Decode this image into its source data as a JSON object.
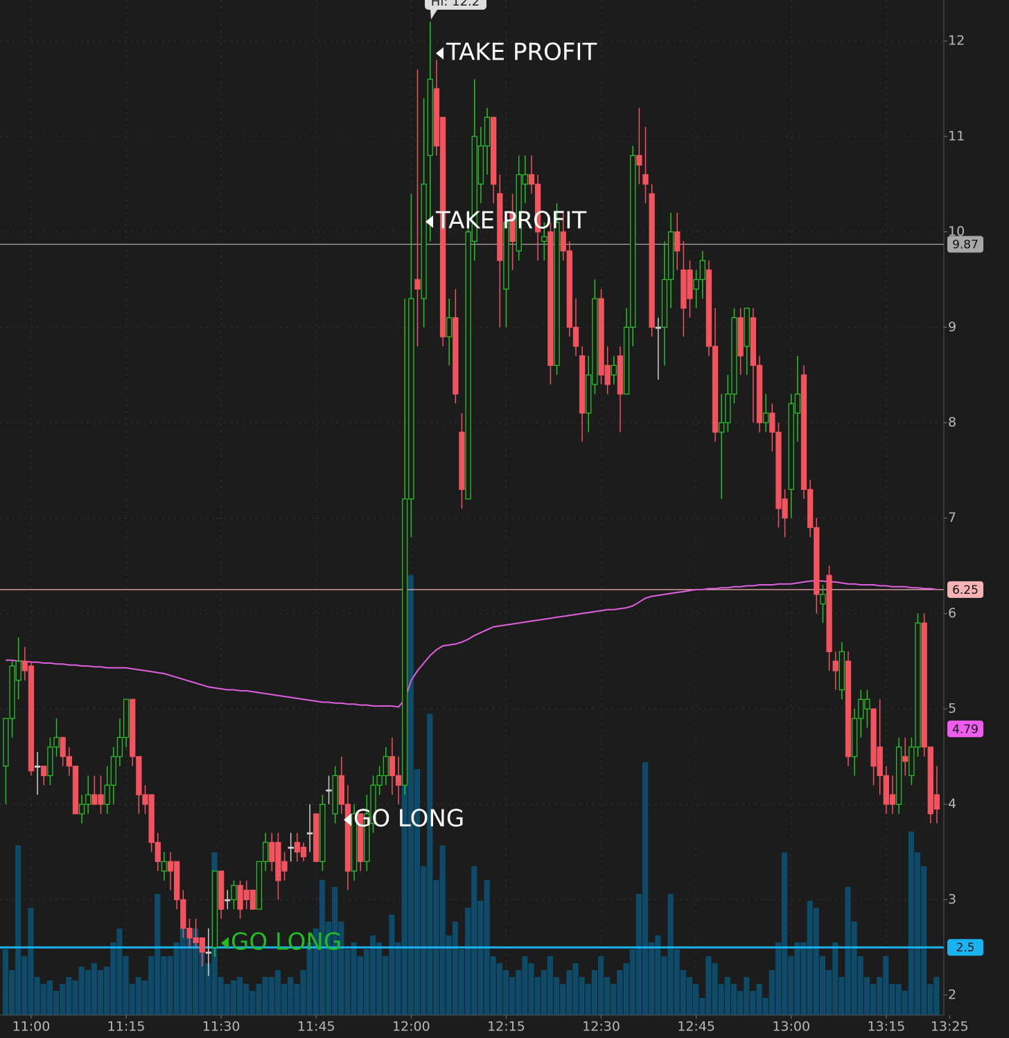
{
  "chart_data": {
    "type": "candlestick",
    "x": [
      656,
      657,
      658,
      659,
      660,
      661,
      662,
      663,
      664,
      665,
      666,
      667,
      668,
      669,
      670,
      671,
      672,
      673,
      674,
      675,
      676,
      677,
      678,
      679,
      680,
      681,
      682,
      683,
      684,
      685,
      686,
      687,
      688,
      689,
      690,
      691,
      692,
      693,
      694,
      695,
      696,
      697,
      698,
      699,
      700,
      701,
      702,
      703,
      704,
      705,
      706,
      707,
      708,
      709,
      710,
      711,
      712,
      713,
      714,
      715,
      716,
      717,
      718,
      719,
      720,
      721,
      722,
      723,
      724,
      725,
      726,
      727,
      728,
      729,
      730,
      731,
      732,
      733,
      734,
      735,
      736,
      737,
      738,
      739,
      740,
      741,
      742,
      743,
      744,
      745,
      746,
      747,
      748,
      749,
      750,
      751,
      752,
      753,
      754,
      755,
      756,
      757,
      758,
      759,
      760,
      761,
      762,
      763,
      764,
      765,
      766,
      767,
      768,
      769,
      770,
      771,
      772,
      773,
      774,
      775,
      776,
      777,
      778,
      779,
      780,
      781,
      782,
      783,
      784,
      785,
      786,
      787,
      788,
      789,
      790,
      791,
      792,
      793,
      794,
      795,
      796,
      797,
      798,
      799,
      800,
      801,
      802,
      803
    ],
    "open": [
      4.4,
      4.9,
      5.3,
      5.5,
      5.45,
      4.4,
      4.4,
      4.3,
      4.6,
      4.7,
      4.5,
      4.4,
      3.9,
      4.0,
      4.1,
      4.1,
      4.0,
      4.2,
      4.5,
      4.7,
      5.1,
      4.5,
      4.1,
      4.1,
      3.6,
      3.3,
      3.4,
      3.4,
      3.0,
      2.7,
      2.6,
      2.6,
      2.45,
      2.5,
      3.3,
      3.0,
      3.0,
      3.15,
      3.1,
      3.1,
      2.9,
      3.4,
      3.6,
      3.6,
      3.4,
      3.55,
      3.6,
      3.55,
      3.7,
      3.9,
      3.4,
      4.15,
      3.9,
      4.3,
      4.0,
      3.3,
      3.9,
      3.4,
      3.8,
      4.2,
      4.3,
      4.5,
      4.3,
      4.2,
      7.2,
      9.5,
      9.3,
      10.8,
      11.5,
      11.2,
      8.9,
      9.1,
      7.9,
      7.2,
      9.9,
      10.5,
      10.9,
      11.2,
      10.4,
      9.4,
      10.2,
      9.8,
      10.5,
      10.6,
      10.5,
      9.9,
      10.0,
      8.6,
      10.0,
      9.8,
      9.0,
      8.7,
      8.1,
      8.4,
      9.3,
      8.6,
      8.5,
      8.7,
      8.3,
      9.0,
      10.8,
      10.6,
      10.4,
      9.0,
      9.0,
      9.5,
      10.0,
      9.6,
      9.6,
      9.4,
      9.5,
      9.6,
      8.8,
      7.9,
      8.0,
      8.3,
      9.1,
      8.8,
      9.1,
      8.6,
      8.0,
      8.1,
      7.9,
      7.2,
      7.3,
      8.1,
      8.5,
      7.3,
      6.9,
      6.1,
      6.4,
      5.5,
      5.2,
      5.5,
      4.5,
      4.9,
      5.0,
      5.0,
      4.6,
      4.3,
      4.1,
      4.0,
      4.5,
      4.3,
      4.6,
      5.9,
      4.6,
      4.1
    ],
    "high": [
      4.9,
      5.5,
      5.75,
      5.65,
      5.5,
      4.55,
      4.4,
      4.7,
      4.9,
      4.7,
      4.6,
      4.4,
      4.1,
      4.3,
      4.3,
      4.3,
      4.4,
      4.6,
      4.9,
      5.1,
      5.1,
      4.5,
      4.2,
      4.1,
      3.7,
      3.5,
      3.5,
      3.4,
      3.1,
      2.8,
      2.8,
      2.6,
      2.7,
      3.3,
      3.3,
      3.1,
      3.2,
      3.2,
      3.2,
      3.1,
      3.4,
      3.7,
      3.7,
      3.7,
      3.5,
      3.7,
      3.7,
      3.6,
      4.0,
      3.9,
      4.1,
      4.3,
      4.4,
      4.5,
      4.2,
      4.0,
      3.9,
      4.1,
      4.3,
      4.4,
      4.6,
      4.7,
      4.5,
      9.3,
      10.4,
      11.7,
      11.4,
      12.2,
      11.8,
      11.2,
      9.3,
      9.4,
      8.1,
      10.2,
      11.6,
      11.1,
      11.3,
      11.2,
      10.6,
      10.2,
      10.4,
      10.8,
      10.8,
      10.8,
      10.6,
      10.1,
      10.1,
      10.3,
      10.2,
      9.9,
      9.3,
      8.8,
      8.7,
      9.5,
      9.4,
      8.8,
      8.7,
      8.8,
      9.2,
      10.9,
      11.3,
      11.1,
      10.5,
      9.1,
      9.9,
      10.2,
      10.2,
      9.9,
      9.7,
      9.6,
      9.8,
      9.7,
      9.2,
      8.3,
      8.5,
      9.2,
      9.2,
      9.2,
      9.2,
      8.7,
      8.3,
      8.2,
      8.0,
      7.3,
      8.3,
      8.7,
      8.6,
      7.4,
      7.0,
      6.3,
      6.5,
      5.6,
      5.7,
      5.6,
      5.0,
      5.2,
      5.2,
      5.0,
      5.1,
      4.4,
      4.3,
      4.7,
      4.7,
      4.7,
      6.0,
      6.0,
      4.6,
      4.4
    ],
    "low": [
      4.0,
      4.7,
      5.1,
      5.3,
      4.3,
      4.1,
      4.2,
      4.2,
      4.5,
      4.4,
      4.3,
      3.9,
      3.8,
      3.9,
      4.0,
      3.9,
      3.9,
      4.0,
      4.4,
      4.6,
      4.4,
      3.9,
      3.9,
      3.5,
      3.3,
      3.2,
      3.1,
      2.9,
      2.6,
      2.5,
      2.5,
      2.3,
      2.2,
      2.4,
      2.8,
      2.9,
      2.9,
      2.8,
      2.9,
      2.9,
      2.9,
      3.3,
      3.3,
      3.0,
      3.2,
      3.4,
      3.4,
      3.4,
      3.5,
      3.4,
      3.3,
      4.0,
      3.8,
      3.9,
      3.1,
      3.2,
      3.3,
      3.3,
      3.7,
      4.1,
      4.2,
      4.1,
      4.0,
      4.1,
      6.8,
      8.8,
      9.0,
      9.9,
      10.8,
      8.8,
      8.6,
      8.2,
      7.1,
      7.2,
      9.7,
      10.3,
      10.6,
      10.3,
      9.0,
      9.0,
      9.6,
      9.7,
      10.3,
      10.4,
      9.7,
      9.7,
      8.4,
      8.5,
      9.7,
      8.9,
      8.7,
      7.8,
      7.9,
      8.3,
      8.4,
      8.3,
      8.4,
      7.9,
      8.3,
      8.8,
      10.5,
      10.3,
      8.9,
      8.45,
      8.6,
      9.2,
      9.6,
      8.9,
      9.1,
      9.2,
      9.3,
      8.7,
      7.8,
      7.2,
      7.9,
      8.2,
      8.5,
      8.5,
      8.0,
      7.9,
      7.9,
      7.7,
      6.9,
      6.8,
      7.0,
      7.8,
      7.2,
      6.8,
      6.0,
      5.9,
      5.4,
      5.2,
      5.1,
      4.4,
      4.3,
      4.7,
      4.8,
      4.2,
      4.1,
      3.9,
      3.9,
      3.9,
      4.3,
      4.2,
      4.5,
      4.5,
      3.8,
      3.8
    ],
    "close": [
      4.9,
      5.45,
      5.5,
      5.4,
      4.35,
      4.4,
      4.3,
      4.6,
      4.7,
      4.5,
      4.4,
      3.9,
      4.0,
      4.1,
      4.0,
      4.0,
      4.2,
      4.5,
      4.7,
      5.1,
      4.5,
      4.1,
      4.0,
      3.6,
      3.4,
      3.4,
      3.3,
      3.0,
      2.7,
      2.6,
      2.55,
      2.45,
      2.45,
      3.3,
      2.9,
      3.0,
      3.15,
      2.9,
      3.0,
      2.9,
      3.4,
      3.6,
      3.4,
      3.2,
      3.3,
      3.55,
      3.5,
      3.45,
      3.7,
      3.4,
      4.0,
      4.15,
      4.3,
      4.0,
      3.3,
      3.9,
      3.4,
      3.9,
      4.2,
      4.3,
      4.5,
      4.3,
      4.2,
      7.2,
      9.3,
      9.4,
      10.5,
      11.6,
      10.9,
      8.9,
      9.1,
      8.3,
      7.3,
      10.0,
      11.0,
      10.9,
      11.2,
      10.5,
      9.7,
      10.1,
      9.9,
      10.6,
      10.6,
      10.5,
      10.0,
      9.95,
      8.6,
      10.1,
      9.8,
      9.0,
      8.8,
      8.1,
      8.5,
      9.3,
      8.5,
      8.4,
      8.6,
      8.3,
      9.0,
      10.8,
      10.7,
      10.5,
      9.0,
      9.0,
      9.5,
      10.0,
      9.8,
      9.2,
      9.3,
      9.5,
      9.7,
      8.8,
      7.9,
      8.0,
      8.3,
      9.1,
      8.7,
      9.2,
      8.6,
      8.0,
      8.1,
      7.9,
      7.1,
      7.0,
      8.2,
      8.3,
      7.3,
      6.9,
      6.2,
      6.2,
      5.6,
      5.4,
      5.6,
      4.5,
      4.9,
      5.1,
      5.1,
      4.4,
      4.3,
      4.0,
      4.0,
      4.6,
      4.45,
      4.6,
      5.9,
      4.6,
      3.9,
      3.95
    ],
    "volume": [
      9.5,
      6.5,
      24.5,
      8.5,
      15.5,
      5.5,
      4.5,
      5,
      3.5,
      4.5,
      5.5,
      5,
      7,
      6.5,
      7.5,
      6.5,
      7,
      10.5,
      12.5,
      8.5,
      4.5,
      5.5,
      5,
      8.5,
      17.5,
      8.5,
      8.5,
      10.5,
      12.5,
      11.5,
      12.5,
      9.5,
      7.5,
      23.5,
      5.5,
      4.5,
      5,
      5.5,
      4.5,
      3.5,
      4.5,
      5.5,
      5.5,
      6.5,
      4.5,
      5.5,
      4.5,
      6.5,
      10.5,
      12.5,
      19.5,
      13.5,
      18.5,
      13.5,
      9.5,
      10.5,
      8.5,
      9.5,
      11.5,
      10.5,
      8.5,
      14.5,
      10.5,
      41.5,
      63.5,
      35.5,
      21.5,
      43.5,
      19.5,
      24.5,
      11.5,
      13.5,
      9.5,
      15.5,
      21.5,
      16.5,
      19.5,
      8.5,
      7.5,
      6.5,
      5.5,
      6.5,
      8.5,
      7.5,
      5.5,
      6.5,
      8.5,
      5.5,
      4.5,
      6.5,
      7.5,
      5.5,
      4.5,
      6.5,
      8.5,
      5.5,
      4.5,
      6.5,
      7.5,
      9.5,
      17.5,
      36.5,
      10.5,
      11.5,
      8.5,
      17.5,
      9.5,
      6.5,
      5.5,
      4.5,
      2.5,
      8.5,
      7.5,
      4.5,
      5.5,
      4.5,
      3.5,
      5.5,
      3.5,
      4.5,
      2.5,
      6.5,
      10.5,
      23.5,
      8.5,
      10.5,
      10.5,
      16.5,
      15.5,
      8.5,
      6.5,
      10.5,
      5.5,
      18.5,
      13.5,
      8.5,
      5.5,
      4.5,
      5.5,
      8.5,
      4.5,
      4.5,
      3.5,
      26.5,
      23.5,
      21.5,
      4.5,
      5.5
    ],
    "vwap": [
      5.51,
      5.51,
      5.5,
      5.5,
      5.49,
      5.49,
      5.48,
      5.48,
      5.47,
      5.47,
      5.46,
      5.46,
      5.45,
      5.45,
      5.44,
      5.44,
      5.43,
      5.43,
      5.43,
      5.43,
      5.42,
      5.41,
      5.4,
      5.39,
      5.38,
      5.37,
      5.35,
      5.33,
      5.31,
      5.29,
      5.27,
      5.25,
      5.23,
      5.22,
      5.21,
      5.2,
      5.2,
      5.19,
      5.19,
      5.18,
      5.17,
      5.16,
      5.15,
      5.14,
      5.13,
      5.12,
      5.11,
      5.1,
      5.09,
      5.08,
      5.07,
      5.07,
      5.06,
      5.06,
      5.05,
      5.05,
      5.04,
      5.04,
      5.03,
      5.03,
      5.03,
      5.03,
      5.02,
      5.1,
      5.3,
      5.4,
      5.48,
      5.56,
      5.62,
      5.66,
      5.67,
      5.68,
      5.7,
      5.73,
      5.77,
      5.8,
      5.83,
      5.86,
      5.87,
      5.88,
      5.89,
      5.9,
      5.91,
      5.92,
      5.93,
      5.94,
      5.95,
      5.96,
      5.97,
      5.98,
      5.99,
      6.0,
      6.01,
      6.02,
      6.03,
      6.04,
      6.04,
      6.05,
      6.06,
      6.08,
      6.12,
      6.16,
      6.18,
      6.19,
      6.2,
      6.21,
      6.22,
      6.23,
      6.24,
      6.25,
      6.25,
      6.26,
      6.26,
      6.27,
      6.27,
      6.28,
      6.28,
      6.29,
      6.29,
      6.3,
      6.3,
      6.3,
      6.31,
      6.31,
      6.31,
      6.32,
      6.33,
      6.34,
      6.34,
      6.34,
      6.33,
      6.33,
      6.32,
      6.31,
      6.31,
      6.3,
      6.3,
      6.3,
      6.29,
      6.29,
      6.28,
      6.28,
      6.28,
      6.27,
      6.27,
      6.26,
      6.26,
      6.25
    ],
    "up_color": "#27c227",
    "down_color": "#f2545f",
    "flat_color": "#cfcfcf",
    "volume_color": "#0d4b69",
    "vwap_color": "#e060e0",
    "xlim": [
      655.08,
      804.1
    ],
    "ylim": [
      1.79,
      12.43
    ],
    "yticks": [
      2,
      3,
      4,
      5,
      6,
      7,
      8,
      9,
      10,
      11,
      12
    ],
    "xticks": [
      {
        "value": 660,
        "label": "11:00"
      },
      {
        "value": 675,
        "label": "11:15"
      },
      {
        "value": 690,
        "label": "11:30"
      },
      {
        "value": 705,
        "label": "11:45"
      },
      {
        "value": 720,
        "label": "12:00"
      },
      {
        "value": 735,
        "label": "12:15"
      },
      {
        "value": 750,
        "label": "12:30"
      },
      {
        "value": 765,
        "label": "12:45"
      },
      {
        "value": 780,
        "label": "13:00"
      },
      {
        "value": 795,
        "label": "13:15"
      },
      {
        "value": 805,
        "label": "13:25"
      }
    ],
    "grid": true,
    "levels": [
      {
        "value": 9.87,
        "color": "#a8a8a8",
        "line": true
      },
      {
        "value": 6.25,
        "color": "#f4b4b4",
        "line": true
      },
      {
        "value": 4.79,
        "color": "#ee5cee",
        "line": false
      },
      {
        "value": 2.5,
        "color": "#1ab4f0",
        "line": true
      }
    ],
    "annotations": [
      {
        "text": "Hi: 12.2",
        "color": "#dddddd"
      },
      {
        "text": "TAKE PROFIT",
        "color": "#ffffff"
      },
      {
        "text": "TAKE PROFIT",
        "color": "#ffffff"
      },
      {
        "text": "GO LONG",
        "color": "#ffffff"
      },
      {
        "text": "GO LONG",
        "color": "#22bb22"
      }
    ]
  }
}
